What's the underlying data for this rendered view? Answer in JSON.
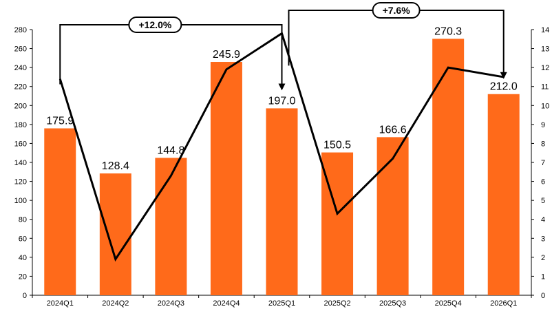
{
  "chart_data": {
    "type": "bar",
    "categories": [
      "2024Q1",
      "2024Q2",
      "2024Q3",
      "2024Q4",
      "2025Q1",
      "2025Q2",
      "2025Q3",
      "2025Q4",
      "2026Q1"
    ],
    "series": [
      {
        "type": "bar",
        "axis": "left",
        "color": "#ff6a1a",
        "values": [
          175.9,
          128.4,
          144.8,
          245.9,
          197.0,
          150.5,
          166.6,
          270.3,
          212.0
        ],
        "labels": [
          "175.9",
          "128.4",
          "144.8",
          "245.9",
          "197.0",
          "150.5",
          "166.6",
          "270.3",
          "212.0"
        ]
      },
      {
        "type": "line",
        "axis": "right",
        "color": "#000000",
        "values": [
          11.4,
          1.9,
          6.3,
          11.9,
          13.8,
          4.3,
          7.2,
          12.0,
          11.5
        ]
      }
    ],
    "y_left": {
      "min": 0,
      "max": 280,
      "step": 20,
      "ticks": [
        "0",
        "20",
        "40",
        "60",
        "80",
        "100",
        "120",
        "140",
        "160",
        "180",
        "200",
        "220",
        "240",
        "260",
        "280"
      ]
    },
    "y_right": {
      "min": 0,
      "max": 14,
      "step": 1,
      "ticks": [
        "0",
        "1",
        "2",
        "3",
        "4",
        "5",
        "6",
        "7",
        "8",
        "9",
        "10",
        "11",
        "12",
        "13",
        "14"
      ]
    },
    "grid": false,
    "legend": "none",
    "annotations": [
      {
        "label": "+12.0%",
        "from": "2024Q1",
        "to": "2025Q1"
      },
      {
        "label": "+7.6%",
        "from": "2025Q1",
        "to": "2026Q1"
      }
    ]
  }
}
